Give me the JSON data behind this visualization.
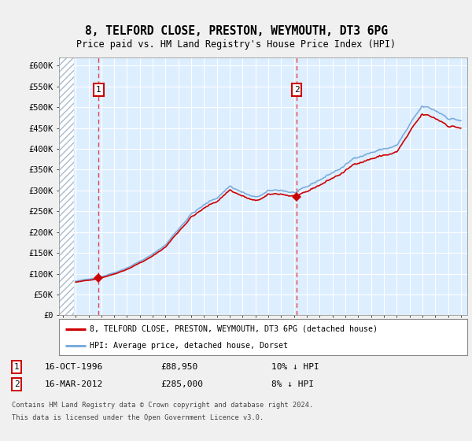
{
  "title": "8, TELFORD CLOSE, PRESTON, WEYMOUTH, DT3 6PG",
  "subtitle": "Price paid vs. HM Land Registry's House Price Index (HPI)",
  "background_color": "#f0f0f0",
  "plot_bg_color": "#ddeeff",
  "hatch_color": "#aabbcc",
  "grid_color": "#ffffff",
  "sale1_date_num": 1996.79,
  "sale1_price": 88950,
  "sale1_label": "1",
  "sale2_date_num": 2012.21,
  "sale2_price": 285000,
  "sale2_label": "2",
  "hpi_color": "#7aaddd",
  "price_color": "#cc0000",
  "marker_color": "#cc0000",
  "dashed_line_color": "#dd4444",
  "ytick_labels": [
    "£0",
    "£50K",
    "£100K",
    "£150K",
    "£200K",
    "£250K",
    "£300K",
    "£350K",
    "£400K",
    "£450K",
    "£500K",
    "£550K",
    "£600K"
  ],
  "ytick_values": [
    0,
    50000,
    100000,
    150000,
    200000,
    250000,
    300000,
    350000,
    400000,
    450000,
    500000,
    550000,
    600000
  ],
  "xmin": 1993.7,
  "xmax": 2025.5,
  "ymin": 0,
  "ymax": 620000,
  "legend_line1": "8, TELFORD CLOSE, PRESTON, WEYMOUTH, DT3 6PG (detached house)",
  "legend_line2": "HPI: Average price, detached house, Dorset",
  "footnote_line1": "Contains HM Land Registry data © Crown copyright and database right 2024.",
  "footnote_line2": "This data is licensed under the Open Government Licence v3.0.",
  "table_row1_num": "1",
  "table_row1_date": "16-OCT-1996",
  "table_row1_price": "£88,950",
  "table_row1_hpi": "10% ↓ HPI",
  "table_row2_num": "2",
  "table_row2_date": "16-MAR-2012",
  "table_row2_price": "£285,000",
  "table_row2_hpi": "8% ↓ HPI",
  "xtick_years": [
    1994,
    1995,
    1996,
    1997,
    1998,
    1999,
    2000,
    2001,
    2002,
    2003,
    2004,
    2005,
    2006,
    2007,
    2008,
    2009,
    2010,
    2011,
    2012,
    2013,
    2014,
    2015,
    2016,
    2017,
    2018,
    2019,
    2020,
    2021,
    2022,
    2023,
    2024,
    2025
  ]
}
